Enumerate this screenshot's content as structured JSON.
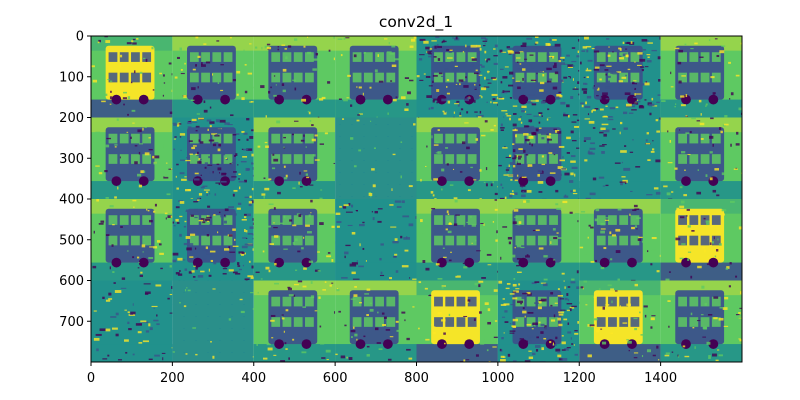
{
  "chart_data": {
    "type": "heatmap",
    "title": "conv2d_1",
    "xlabel": "",
    "ylabel": "",
    "xlim": [
      0,
      1600
    ],
    "ylim": [
      800,
      0
    ],
    "x_ticks": [
      0,
      200,
      400,
      600,
      800,
      1000,
      1200,
      1400
    ],
    "y_ticks": [
      0,
      100,
      200,
      300,
      400,
      500,
      600,
      700
    ],
    "grid": {
      "rows": 4,
      "cols": 8,
      "tile_size": 200,
      "colormap": [
        "#440154",
        "#3b528b",
        "#21918c",
        "#5ec962",
        "#fde725"
      ],
      "tiles": [
        {
          "row": 0,
          "col": 0,
          "style": "bright-bus"
        },
        {
          "row": 0,
          "col": 1,
          "style": "dark-bus"
        },
        {
          "row": 0,
          "col": 2,
          "style": "dark-bus"
        },
        {
          "row": 0,
          "col": 3,
          "style": "dark-bus"
        },
        {
          "row": 0,
          "col": 4,
          "style": "edges"
        },
        {
          "row": 0,
          "col": 5,
          "style": "edges"
        },
        {
          "row": 0,
          "col": 6,
          "style": "edges"
        },
        {
          "row": 0,
          "col": 7,
          "style": "dark-bus"
        },
        {
          "row": 1,
          "col": 0,
          "style": "dark-bus"
        },
        {
          "row": 1,
          "col": 1,
          "style": "edges"
        },
        {
          "row": 1,
          "col": 2,
          "style": "dark-bus"
        },
        {
          "row": 1,
          "col": 3,
          "style": "flat"
        },
        {
          "row": 1,
          "col": 4,
          "style": "dark-bus"
        },
        {
          "row": 1,
          "col": 5,
          "style": "edges"
        },
        {
          "row": 1,
          "col": 6,
          "style": "sparse"
        },
        {
          "row": 1,
          "col": 7,
          "style": "dark-bus"
        },
        {
          "row": 2,
          "col": 0,
          "style": "dark-bus"
        },
        {
          "row": 2,
          "col": 1,
          "style": "edges"
        },
        {
          "row": 2,
          "col": 2,
          "style": "dark-bus"
        },
        {
          "row": 2,
          "col": 3,
          "style": "sparse"
        },
        {
          "row": 2,
          "col": 4,
          "style": "dark-bus"
        },
        {
          "row": 2,
          "col": 5,
          "style": "dark-bus"
        },
        {
          "row": 2,
          "col": 6,
          "style": "dark-bus"
        },
        {
          "row": 2,
          "col": 7,
          "style": "bright-bus"
        },
        {
          "row": 3,
          "col": 0,
          "style": "sparse"
        },
        {
          "row": 3,
          "col": 1,
          "style": "flat"
        },
        {
          "row": 3,
          "col": 2,
          "style": "dark-bus"
        },
        {
          "row": 3,
          "col": 3,
          "style": "dark-bus"
        },
        {
          "row": 3,
          "col": 4,
          "style": "bright-bus"
        },
        {
          "row": 3,
          "col": 5,
          "style": "edges"
        },
        {
          "row": 3,
          "col": 6,
          "style": "bright-bus"
        },
        {
          "row": 3,
          "col": 7,
          "style": "dark-bus"
        }
      ]
    }
  }
}
